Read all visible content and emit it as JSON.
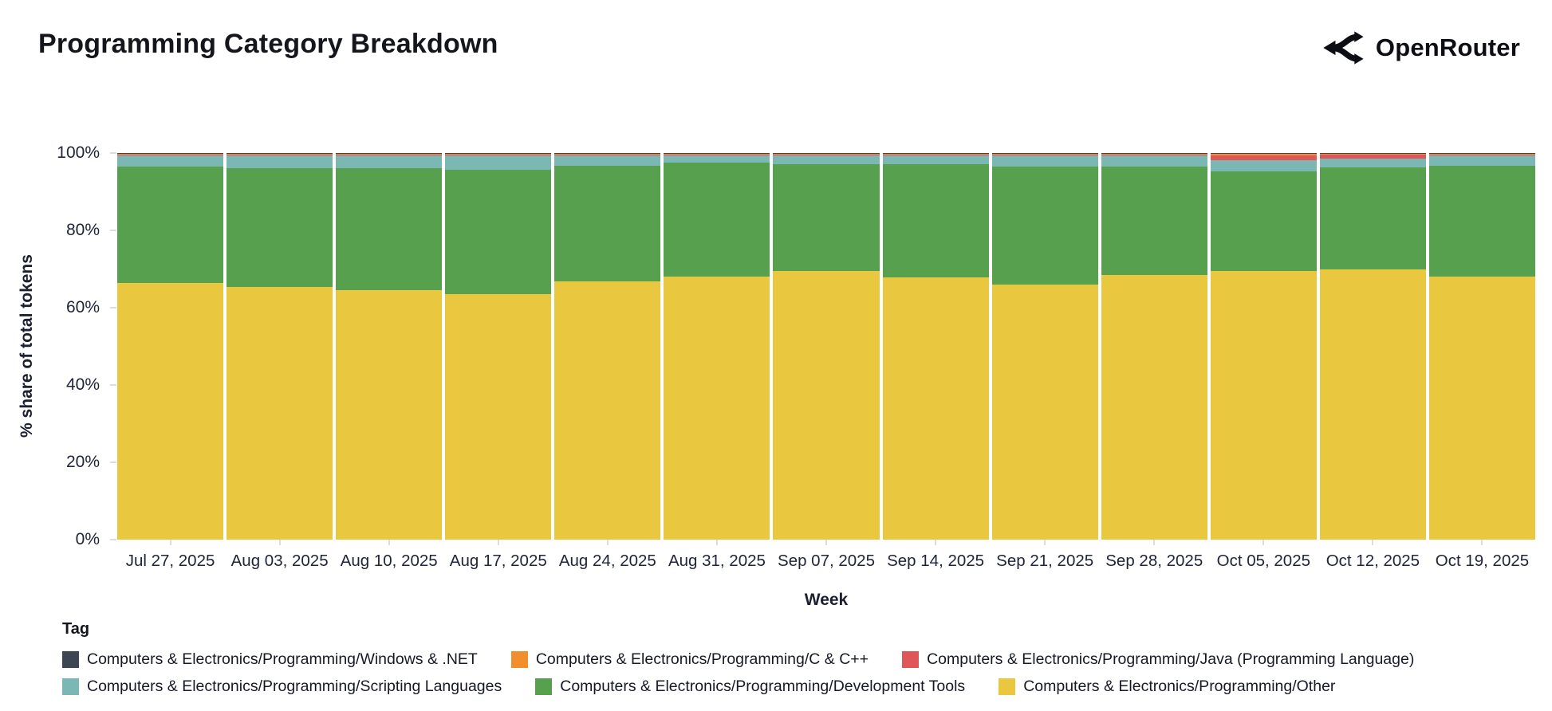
{
  "header": {
    "title": "Programming Category Breakdown",
    "brand": "OpenRouter"
  },
  "chart_data": {
    "type": "bar",
    "stacked": true,
    "title": "Programming Category Breakdown",
    "xlabel": "Week",
    "ylabel": "% share of total tokens",
    "ylim": [
      0,
      100
    ],
    "y_ticks": [
      0,
      20,
      40,
      60,
      80,
      100
    ],
    "y_tick_labels": [
      "0%",
      "20%",
      "40%",
      "60%",
      "80%",
      "100%"
    ],
    "grid": false,
    "legend_position": "bottom",
    "categories": [
      "Jul 27, 2025",
      "Aug 03, 2025",
      "Aug 10, 2025",
      "Aug 17, 2025",
      "Aug 24, 2025",
      "Aug 31, 2025",
      "Sep 07, 2025",
      "Sep 14, 2025",
      "Sep 21, 2025",
      "Sep 28, 2025",
      "Oct 05, 2025",
      "Oct 12, 2025",
      "Oct 19, 2025"
    ],
    "stack_order_bottom_to_top": [
      "other",
      "dev_tools",
      "scripting",
      "java",
      "cpp",
      "windows"
    ],
    "series": [
      {
        "key": "windows",
        "name": "Computers & Electronics/Programming/Windows & .NET",
        "color": "#3e4653",
        "swatch_pattern": "teal-dots",
        "values": [
          0.1,
          0.1,
          0.1,
          0.1,
          0.1,
          0.1,
          0.1,
          0.1,
          0.1,
          0.1,
          0.2,
          0.1,
          0.1
        ]
      },
      {
        "key": "cpp",
        "name": "Computers & Electronics/Programming/C & C++",
        "color": "#f28e2b",
        "values": [
          0.4,
          0.4,
          0.4,
          0.4,
          0.4,
          0.4,
          0.4,
          0.4,
          0.4,
          0.4,
          0.4,
          0.4,
          0.4
        ]
      },
      {
        "key": "java",
        "name": "Computers & Electronics/Programming/Java (Programming Language)",
        "color": "#e05759",
        "values": [
          0.1,
          0.1,
          0.1,
          0.1,
          0.1,
          0.1,
          0.1,
          0.1,
          0.1,
          0.1,
          1.2,
          1.0,
          0.1
        ]
      },
      {
        "key": "scripting",
        "name": "Computers & Electronics/Programming/Scripting Languages",
        "color": "#7bb8b3",
        "values": [
          2.9,
          3.3,
          3.3,
          3.7,
          2.7,
          1.9,
          2.3,
          2.3,
          2.9,
          2.9,
          2.9,
          2.2,
          2.7
        ]
      },
      {
        "key": "dev_tools",
        "name": "Computers & Electronics/Programming/Development Tools",
        "color": "#57a14e",
        "values": [
          30.2,
          30.7,
          31.5,
          32.2,
          29.9,
          29.5,
          27.6,
          29.3,
          30.5,
          28.0,
          25.8,
          26.5,
          28.7
        ]
      },
      {
        "key": "other",
        "name": "Computers & Electronics/Programming/Other",
        "color": "#e9c83f",
        "values": [
          66.3,
          65.4,
          64.6,
          63.5,
          66.8,
          68.0,
          69.5,
          67.8,
          66.0,
          68.5,
          69.5,
          69.8,
          68.0
        ]
      }
    ]
  },
  "legend": {
    "title": "Tag",
    "rows": [
      [
        "windows",
        "cpp",
        "java"
      ],
      [
        "scripting",
        "dev_tools",
        "other"
      ]
    ]
  }
}
